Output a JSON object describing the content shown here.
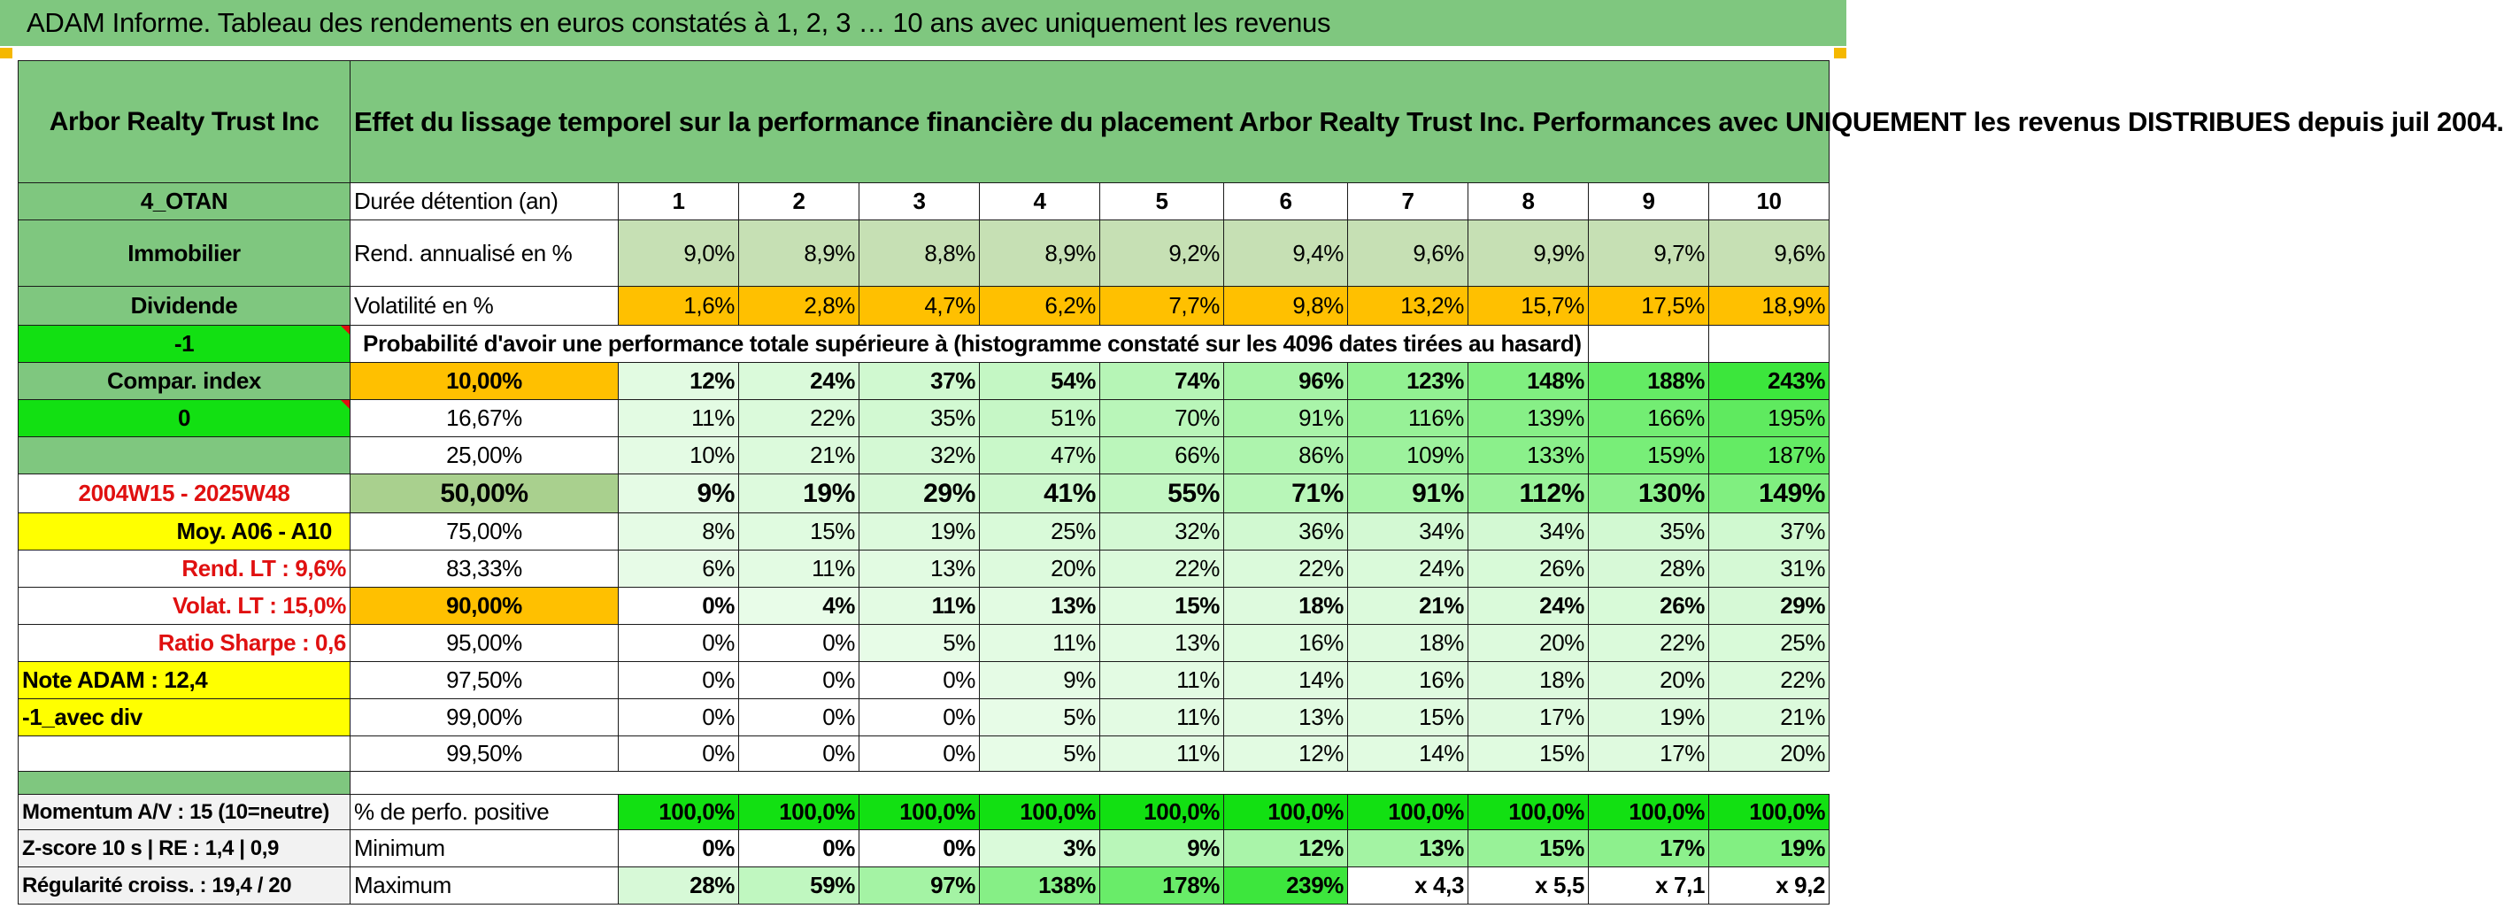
{
  "banner": "ADAM Informe. Tableau des rendements en euros constatés à 1, 2, 3 … 10 ans avec uniquement les revenus",
  "company": "Arbor Realty Trust Inc",
  "description": "Effet du lissage temporel sur la performance financière du placement Arbor Realty Trust Inc. Performances avec UNIQUEMENT les revenus DISTRIBUES depuis juil 2004.",
  "side": {
    "code": "4_OTAN",
    "sector": "Immobilier",
    "type": "Dividende",
    "minus_one": "-1",
    "compar": "Compar. index",
    "zero": "0",
    "period": "2004W15 - 2025W48",
    "moy": "Moy. A06 - A10",
    "rend_lt": "Rend. LT :   9,6%",
    "volat_lt": "Volat. LT :   15,0%",
    "sharpe": "Ratio Sharpe :   0,6",
    "note": "Note ADAM : 12,4",
    "avec_div": "-1_avec div"
  },
  "headers": {
    "duration_label": "Durée détention (an)",
    "years": [
      "1",
      "2",
      "3",
      "4",
      "5",
      "6",
      "7",
      "8",
      "9",
      "10"
    ]
  },
  "rend": {
    "label": "Rend. annualisé en %",
    "values": [
      "9,0%",
      "8,9%",
      "8,8%",
      "8,9%",
      "9,2%",
      "9,4%",
      "9,6%",
      "9,9%",
      "9,7%",
      "9,6%"
    ]
  },
  "volat": {
    "label": "Volatilité en %",
    "values": [
      "1,6%",
      "2,8%",
      "4,7%",
      "6,2%",
      "7,7%",
      "9,8%",
      "13,2%",
      "15,7%",
      "17,5%",
      "18,9%"
    ]
  },
  "prob_title": "Probabilité d'avoir une performance totale supérieure à (histogramme constaté sur les 4096 dates tirées au hasard)",
  "prob_rows": [
    {
      "pct": "10,00%",
      "values": [
        "12%",
        "24%",
        "37%",
        "54%",
        "74%",
        "96%",
        "123%",
        "148%",
        "188%",
        "243%"
      ]
    },
    {
      "pct": "16,67%",
      "values": [
        "11%",
        "22%",
        "35%",
        "51%",
        "70%",
        "91%",
        "116%",
        "139%",
        "166%",
        "195%"
      ]
    },
    {
      "pct": "25,00%",
      "values": [
        "10%",
        "21%",
        "32%",
        "47%",
        "66%",
        "86%",
        "109%",
        "133%",
        "159%",
        "187%"
      ]
    },
    {
      "pct": "50,00%",
      "values": [
        "9%",
        "19%",
        "29%",
        "41%",
        "55%",
        "71%",
        "91%",
        "112%",
        "130%",
        "149%"
      ]
    },
    {
      "pct": "75,00%",
      "values": [
        "8%",
        "15%",
        "19%",
        "25%",
        "32%",
        "36%",
        "34%",
        "34%",
        "35%",
        "37%"
      ]
    },
    {
      "pct": "83,33%",
      "values": [
        "6%",
        "11%",
        "13%",
        "20%",
        "22%",
        "22%",
        "24%",
        "26%",
        "28%",
        "31%"
      ]
    },
    {
      "pct": "90,00%",
      "values": [
        "0%",
        "4%",
        "11%",
        "13%",
        "15%",
        "18%",
        "21%",
        "24%",
        "26%",
        "29%"
      ]
    },
    {
      "pct": "95,00%",
      "values": [
        "0%",
        "0%",
        "5%",
        "11%",
        "13%",
        "16%",
        "18%",
        "20%",
        "22%",
        "25%"
      ]
    },
    {
      "pct": "97,50%",
      "values": [
        "0%",
        "0%",
        "0%",
        "9%",
        "11%",
        "14%",
        "16%",
        "18%",
        "20%",
        "22%"
      ]
    },
    {
      "pct": "99,00%",
      "values": [
        "0%",
        "0%",
        "0%",
        "5%",
        "11%",
        "13%",
        "15%",
        "17%",
        "19%",
        "21%"
      ]
    },
    {
      "pct": "99,50%",
      "values": [
        "0%",
        "0%",
        "0%",
        "5%",
        "11%",
        "12%",
        "14%",
        "15%",
        "17%",
        "20%"
      ]
    }
  ],
  "bottom": {
    "momentum": "Momentum A/V : 15 (10=neutre)",
    "zscore": "Z-score 10 s | RE : 1,4 | 0,9",
    "regularite": "Régularité croiss. : 19,4 / 20",
    "positive_label": "% de perfo. positive",
    "positive_values": [
      "100,0%",
      "100,0%",
      "100,0%",
      "100,0%",
      "100,0%",
      "100,0%",
      "100,0%",
      "100,0%",
      "100,0%",
      "100,0%"
    ],
    "min_label": "Minimum",
    "min_values": [
      "0%",
      "0%",
      "0%",
      "3%",
      "9%",
      "12%",
      "13%",
      "15%",
      "17%",
      "19%"
    ],
    "max_label": "Maximum",
    "max_values": [
      "28%",
      "59%",
      "97%",
      "138%",
      "178%",
      "239%",
      "x 4,3",
      "x 5,5",
      "x 7,1",
      "x 9,2"
    ]
  },
  "colors": {
    "title_green": "#7fc77f",
    "bright_green": "#12e012",
    "yellow": "#ffff00",
    "orange": "#ffc000",
    "pale_green": "#c6e0b4",
    "red_text": "#e01010"
  }
}
